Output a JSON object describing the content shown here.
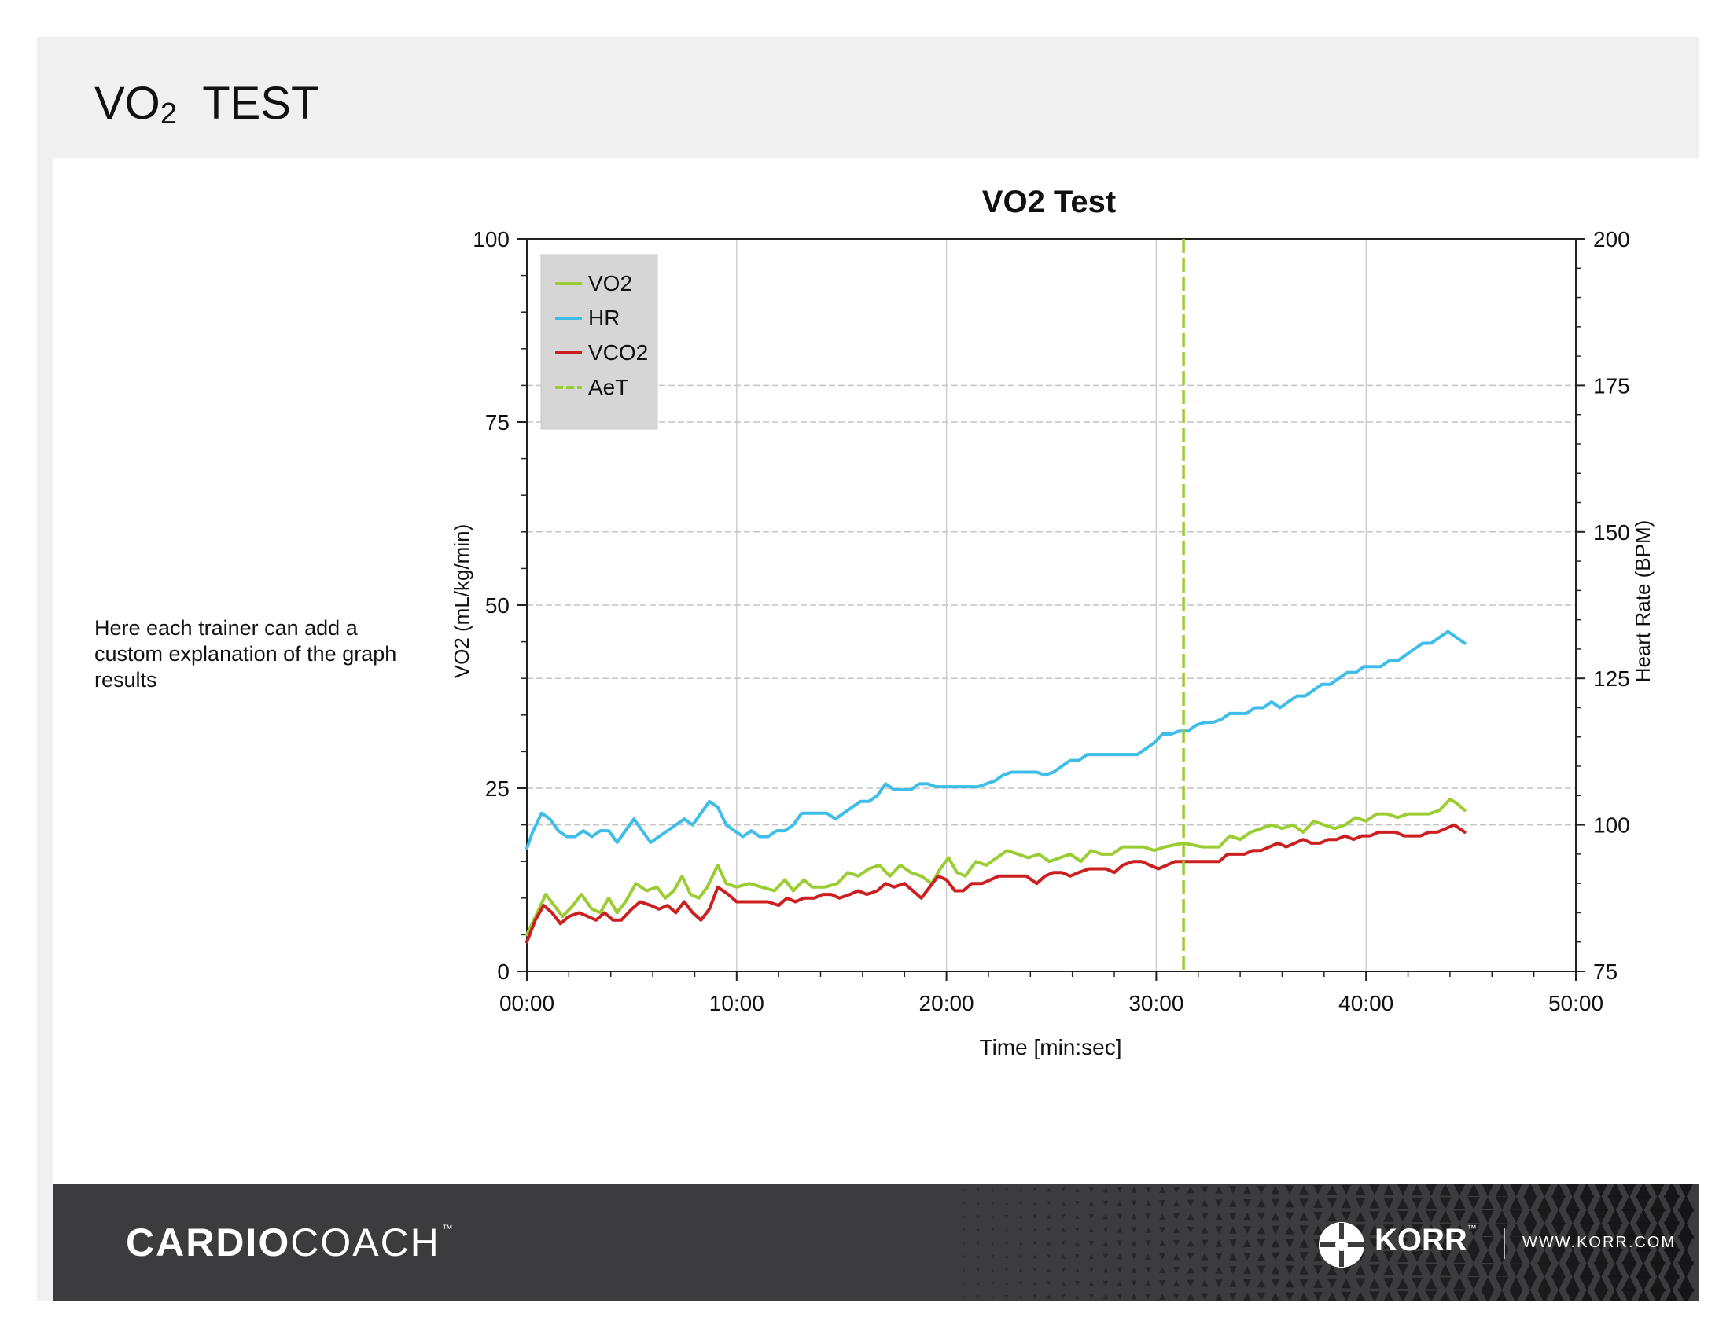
{
  "page": {
    "title_main": "VO",
    "title_sub": "2",
    "title_rest": "TEST",
    "explanation": "Here each trainer can add a custom explanation of the graph results"
  },
  "footer": {
    "brand_bold": "CARDIO",
    "brand_light": "COACH",
    "brand_tm": "™",
    "korr_name": "KORR",
    "korr_tm": "™",
    "korr_url": "WWW.KORR.COM"
  },
  "chart_data": {
    "type": "line",
    "title": "VO2 Test",
    "xlabel": "Time [min:sec]",
    "ylabel": "VO2 (mL/kg/min)",
    "y2label": "Heart Rate (BPM)",
    "xlim": [
      0,
      50
    ],
    "ylim": [
      0,
      100
    ],
    "y2lim": [
      75,
      200
    ],
    "x_ticks": [
      "00:00",
      "10:00",
      "20:00",
      "30:00",
      "40:00",
      "50:00"
    ],
    "y_ticks": [
      "0",
      "25",
      "50",
      "75",
      "100"
    ],
    "y2_ticks": [
      "75",
      "100",
      "125",
      "150",
      "175",
      "200"
    ],
    "grid": true,
    "legend_position": "top-left",
    "legend": [
      "VO2",
      "HR",
      "VCO2",
      "AeT"
    ],
    "series": [
      {
        "name": "VO2",
        "axis": "left",
        "color": "#9acd32",
        "points": [
          [
            0,
            5
          ],
          [
            0.5,
            8
          ],
          [
            0.9,
            10.5
          ],
          [
            1.3,
            9
          ],
          [
            1.7,
            7.5
          ],
          [
            2.2,
            9
          ],
          [
            2.6,
            10.5
          ],
          [
            3.1,
            8.5
          ],
          [
            3.5,
            8
          ],
          [
            3.9,
            10
          ],
          [
            4.3,
            8
          ],
          [
            4.7,
            9.5
          ],
          [
            5.2,
            12
          ],
          [
            5.7,
            11
          ],
          [
            6.2,
            11.5
          ],
          [
            6.6,
            10
          ],
          [
            7.0,
            11
          ],
          [
            7.4,
            13
          ],
          [
            7.8,
            10.5
          ],
          [
            8.2,
            10
          ],
          [
            8.6,
            11.5
          ],
          [
            9.1,
            14.5
          ],
          [
            9.5,
            12
          ],
          [
            10.0,
            11.5
          ],
          [
            10.6,
            12
          ],
          [
            11.2,
            11.5
          ],
          [
            11.8,
            11
          ],
          [
            12.3,
            12.5
          ],
          [
            12.7,
            11
          ],
          [
            13.2,
            12.5
          ],
          [
            13.6,
            11.5
          ],
          [
            14.2,
            11.5
          ],
          [
            14.8,
            12
          ],
          [
            15.3,
            13.5
          ],
          [
            15.8,
            13
          ],
          [
            16.3,
            14
          ],
          [
            16.8,
            14.5
          ],
          [
            17.3,
            13
          ],
          [
            17.8,
            14.5
          ],
          [
            18.3,
            13.5
          ],
          [
            18.8,
            13
          ],
          [
            19.3,
            12
          ],
          [
            19.7,
            14
          ],
          [
            20.1,
            15.5
          ],
          [
            20.5,
            13.5
          ],
          [
            20.9,
            13
          ],
          [
            21.4,
            15
          ],
          [
            21.9,
            14.5
          ],
          [
            22.4,
            15.5
          ],
          [
            22.9,
            16.5
          ],
          [
            23.4,
            16
          ],
          [
            23.9,
            15.5
          ],
          [
            24.4,
            16
          ],
          [
            24.9,
            15
          ],
          [
            25.4,
            15.5
          ],
          [
            25.9,
            16
          ],
          [
            26.4,
            15
          ],
          [
            26.9,
            16.5
          ],
          [
            27.4,
            16
          ],
          [
            27.9,
            16
          ],
          [
            28.4,
            17
          ],
          [
            28.9,
            17
          ],
          [
            29.4,
            17
          ],
          [
            29.9,
            16.5
          ],
          [
            30.4,
            17
          ],
          [
            31.3,
            17.5
          ],
          [
            32.2,
            17
          ],
          [
            33.0,
            17
          ],
          [
            33.5,
            18.5
          ],
          [
            34.0,
            18
          ],
          [
            34.5,
            19
          ],
          [
            35.0,
            19.5
          ],
          [
            35.5,
            20
          ],
          [
            36.0,
            19.5
          ],
          [
            36.5,
            20
          ],
          [
            37.0,
            19
          ],
          [
            37.5,
            20.5
          ],
          [
            38.0,
            20
          ],
          [
            38.5,
            19.5
          ],
          [
            39.0,
            20
          ],
          [
            39.5,
            21
          ],
          [
            40.0,
            20.5
          ],
          [
            40.5,
            21.5
          ],
          [
            41.0,
            21.5
          ],
          [
            41.5,
            21
          ],
          [
            42.0,
            21.5
          ],
          [
            42.5,
            21.5
          ],
          [
            43.0,
            21.5
          ],
          [
            43.5,
            22
          ],
          [
            44.0,
            23.5
          ],
          [
            44.3,
            23
          ],
          [
            44.7,
            22
          ]
        ]
      },
      {
        "name": "HR",
        "axis": "right",
        "color": "#3dbde8",
        "points": [
          [
            0,
            96
          ],
          [
            0.3,
            99
          ],
          [
            0.7,
            102
          ],
          [
            1.1,
            101
          ],
          [
            1.5,
            99
          ],
          [
            1.9,
            98
          ],
          [
            2.3,
            98
          ],
          [
            2.7,
            99
          ],
          [
            3.1,
            98
          ],
          [
            3.5,
            99
          ],
          [
            3.9,
            99
          ],
          [
            4.3,
            97
          ],
          [
            4.7,
            99
          ],
          [
            5.1,
            101
          ],
          [
            5.5,
            99
          ],
          [
            5.9,
            97
          ],
          [
            6.3,
            98
          ],
          [
            6.7,
            99
          ],
          [
            7.1,
            100
          ],
          [
            7.5,
            101
          ],
          [
            7.9,
            100
          ],
          [
            8.3,
            102
          ],
          [
            8.7,
            104
          ],
          [
            9.1,
            103
          ],
          [
            9.5,
            100
          ],
          [
            9.9,
            99
          ],
          [
            10.3,
            98
          ],
          [
            10.7,
            99
          ],
          [
            11.1,
            98
          ],
          [
            11.5,
            98
          ],
          [
            11.9,
            99
          ],
          [
            12.3,
            99
          ],
          [
            12.7,
            100
          ],
          [
            13.1,
            102
          ],
          [
            13.5,
            102
          ],
          [
            13.9,
            102
          ],
          [
            14.3,
            102
          ],
          [
            14.7,
            101
          ],
          [
            15.1,
            102
          ],
          [
            15.5,
            103
          ],
          [
            15.9,
            104
          ],
          [
            16.3,
            104
          ],
          [
            16.7,
            105
          ],
          [
            17.1,
            107
          ],
          [
            17.5,
            106
          ],
          [
            17.9,
            106
          ],
          [
            18.3,
            106
          ],
          [
            18.7,
            107
          ],
          [
            19.1,
            107
          ],
          [
            19.5,
            106.5
          ],
          [
            19.9,
            106.5
          ],
          [
            20.3,
            106.5
          ],
          [
            20.7,
            106.5
          ],
          [
            21.1,
            106.5
          ],
          [
            21.5,
            106.5
          ],
          [
            21.9,
            107
          ],
          [
            22.3,
            107.5
          ],
          [
            22.7,
            108.5
          ],
          [
            23.1,
            109
          ],
          [
            23.5,
            109
          ],
          [
            23.9,
            109
          ],
          [
            24.3,
            109
          ],
          [
            24.7,
            108.5
          ],
          [
            25.1,
            109
          ],
          [
            25.5,
            110
          ],
          [
            25.9,
            111
          ],
          [
            26.3,
            111
          ],
          [
            26.7,
            112
          ],
          [
            27.1,
            112
          ],
          [
            27.5,
            112
          ],
          [
            27.9,
            112
          ],
          [
            28.3,
            112
          ],
          [
            28.7,
            112
          ],
          [
            29.1,
            112
          ],
          [
            29.5,
            113
          ],
          [
            29.9,
            114
          ],
          [
            30.3,
            115.5
          ],
          [
            30.7,
            115.5
          ],
          [
            31.1,
            116
          ],
          [
            31.5,
            116
          ],
          [
            31.9,
            117
          ],
          [
            32.3,
            117.5
          ],
          [
            32.7,
            117.5
          ],
          [
            33.1,
            118
          ],
          [
            33.5,
            119
          ],
          [
            33.9,
            119
          ],
          [
            34.3,
            119
          ],
          [
            34.7,
            120
          ],
          [
            35.1,
            120
          ],
          [
            35.5,
            121
          ],
          [
            35.9,
            120
          ],
          [
            36.3,
            121
          ],
          [
            36.7,
            122
          ],
          [
            37.1,
            122
          ],
          [
            37.5,
            123
          ],
          [
            37.9,
            124
          ],
          [
            38.3,
            124
          ],
          [
            38.7,
            125
          ],
          [
            39.1,
            126
          ],
          [
            39.5,
            126
          ],
          [
            39.9,
            127
          ],
          [
            40.3,
            127
          ],
          [
            40.7,
            127
          ],
          [
            41.1,
            128
          ],
          [
            41.5,
            128
          ],
          [
            41.9,
            129
          ],
          [
            42.3,
            130
          ],
          [
            42.7,
            131
          ],
          [
            43.1,
            131
          ],
          [
            43.5,
            132
          ],
          [
            43.9,
            133
          ],
          [
            44.3,
            132
          ],
          [
            44.7,
            131
          ]
        ]
      },
      {
        "name": "VCO2",
        "axis": "left",
        "color": "#cc1f1f",
        "points": [
          [
            0,
            4
          ],
          [
            0.4,
            7
          ],
          [
            0.8,
            9
          ],
          [
            1.2,
            8
          ],
          [
            1.6,
            6.5
          ],
          [
            2.0,
            7.5
          ],
          [
            2.5,
            8
          ],
          [
            2.9,
            7.5
          ],
          [
            3.3,
            7
          ],
          [
            3.7,
            8
          ],
          [
            4.1,
            7
          ],
          [
            4.5,
            7
          ],
          [
            5.0,
            8.5
          ],
          [
            5.4,
            9.5
          ],
          [
            5.9,
            9
          ],
          [
            6.3,
            8.5
          ],
          [
            6.7,
            9
          ],
          [
            7.1,
            8
          ],
          [
            7.5,
            9.5
          ],
          [
            7.9,
            8
          ],
          [
            8.3,
            7
          ],
          [
            8.7,
            8.5
          ],
          [
            9.1,
            11.5
          ],
          [
            9.6,
            10.5
          ],
          [
            10.0,
            9.5
          ],
          [
            10.5,
            9.5
          ],
          [
            11.0,
            9.5
          ],
          [
            11.5,
            9.5
          ],
          [
            12.0,
            9
          ],
          [
            12.4,
            10
          ],
          [
            12.8,
            9.5
          ],
          [
            13.2,
            10
          ],
          [
            13.7,
            10
          ],
          [
            14.1,
            10.5
          ],
          [
            14.5,
            10.5
          ],
          [
            14.9,
            10
          ],
          [
            15.4,
            10.5
          ],
          [
            15.8,
            11
          ],
          [
            16.2,
            10.5
          ],
          [
            16.7,
            11
          ],
          [
            17.1,
            12
          ],
          [
            17.5,
            11.5
          ],
          [
            18.0,
            12
          ],
          [
            18.4,
            11
          ],
          [
            18.8,
            10
          ],
          [
            19.2,
            11.5
          ],
          [
            19.6,
            13
          ],
          [
            20.0,
            12.5
          ],
          [
            20.4,
            11
          ],
          [
            20.8,
            11
          ],
          [
            21.2,
            12
          ],
          [
            21.7,
            12
          ],
          [
            22.1,
            12.5
          ],
          [
            22.5,
            13
          ],
          [
            23.0,
            13
          ],
          [
            23.4,
            13
          ],
          [
            23.8,
            13
          ],
          [
            24.3,
            12
          ],
          [
            24.7,
            13
          ],
          [
            25.1,
            13.5
          ],
          [
            25.5,
            13.5
          ],
          [
            25.9,
            13
          ],
          [
            26.3,
            13.5
          ],
          [
            26.8,
            14
          ],
          [
            27.2,
            14
          ],
          [
            27.6,
            14
          ],
          [
            28.0,
            13.5
          ],
          [
            28.4,
            14.5
          ],
          [
            28.9,
            15
          ],
          [
            29.3,
            15
          ],
          [
            29.7,
            14.5
          ],
          [
            30.1,
            14
          ],
          [
            30.5,
            14.5
          ],
          [
            30.9,
            15
          ],
          [
            31.4,
            15
          ],
          [
            31.8,
            15
          ],
          [
            32.2,
            15
          ],
          [
            32.6,
            15
          ],
          [
            33.0,
            15
          ],
          [
            33.4,
            16
          ],
          [
            33.8,
            16
          ],
          [
            34.2,
            16
          ],
          [
            34.6,
            16.5
          ],
          [
            35.0,
            16.5
          ],
          [
            35.4,
            17
          ],
          [
            35.8,
            17.5
          ],
          [
            36.2,
            17
          ],
          [
            36.6,
            17.5
          ],
          [
            37.0,
            18
          ],
          [
            37.4,
            17.5
          ],
          [
            37.8,
            17.5
          ],
          [
            38.2,
            18
          ],
          [
            38.6,
            18
          ],
          [
            39.0,
            18.5
          ],
          [
            39.4,
            18
          ],
          [
            39.8,
            18.5
          ],
          [
            40.2,
            18.5
          ],
          [
            40.6,
            19
          ],
          [
            41.0,
            19
          ],
          [
            41.4,
            19
          ],
          [
            41.8,
            18.5
          ],
          [
            42.2,
            18.5
          ],
          [
            42.6,
            18.5
          ],
          [
            43.0,
            19
          ],
          [
            43.4,
            19
          ],
          [
            43.8,
            19.5
          ],
          [
            44.2,
            20
          ],
          [
            44.7,
            19
          ]
        ]
      }
    ],
    "markers": [
      {
        "name": "AeT",
        "type": "vertical-dashed",
        "x": 31.3,
        "color": "#9acd32"
      }
    ]
  }
}
